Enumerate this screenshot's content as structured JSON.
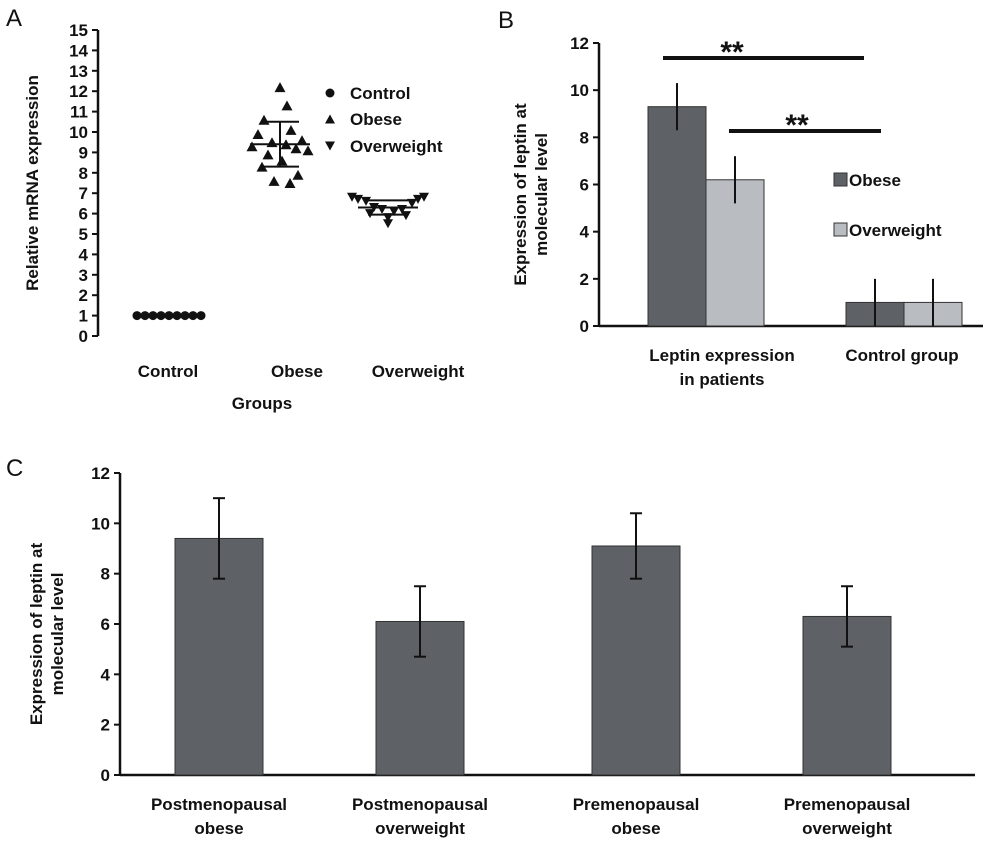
{
  "panels": {
    "A": "A",
    "B": "B",
    "C": "C"
  },
  "colors": {
    "dark_bar": "#5e6166",
    "light_bar": "#b9bcc0",
    "ink": "#111111"
  },
  "chart_data": [
    {
      "panel": "A",
      "type": "scatter",
      "ylabel": "Relative mRNA expression",
      "xlabel": "Groups",
      "ylim": [
        0,
        15
      ],
      "yticks": [
        0,
        1,
        2,
        3,
        4,
        5,
        6,
        7,
        8,
        9,
        10,
        11,
        12,
        13,
        14,
        15
      ],
      "categories": [
        "Control",
        "Obese",
        "Overweight"
      ],
      "legend": {
        "position": "top-right",
        "entries": [
          {
            "label": "Control",
            "marker": "circle"
          },
          {
            "label": "Obese",
            "marker": "triangle-up"
          },
          {
            "label": "Overweight",
            "marker": "triangle-down"
          }
        ]
      },
      "series": [
        {
          "name": "Control",
          "category": "Control",
          "marker": "circle",
          "values": [
            1,
            1,
            1,
            1,
            1,
            1,
            1,
            1,
            1
          ],
          "mean": null,
          "sd": null
        },
        {
          "name": "Obese",
          "category": "Obese",
          "marker": "triangle-up",
          "values": [
            12.2,
            11.3,
            10.6,
            10.1,
            9.9,
            9.6,
            9.5,
            9.4,
            9.3,
            9.2,
            9.1,
            8.9,
            8.6,
            8.3,
            7.9,
            7.6,
            7.5
          ],
          "mean": 9.4,
          "sd": 1.1
        },
        {
          "name": "Overweight",
          "category": "Overweight",
          "marker": "triangle-down",
          "values": [
            6.8,
            6.8,
            6.7,
            6.7,
            6.6,
            6.5,
            6.3,
            6.2,
            6.2,
            6.1,
            6.0,
            5.9,
            5.8,
            5.5
          ],
          "mean": 6.3,
          "sd": 0.35
        }
      ]
    },
    {
      "panel": "B",
      "type": "bar",
      "ylabel": "Expression of leptin at molecular level",
      "ylim": [
        0,
        12
      ],
      "yticks": [
        0,
        2,
        4,
        6,
        8,
        10,
        12
      ],
      "categories": [
        "Leptin expression in patients",
        "Control group"
      ],
      "legend": {
        "position": "right",
        "entries": [
          "Obese",
          "Overweight"
        ]
      },
      "series": [
        {
          "name": "Obese",
          "values": [
            9.3,
            1.0
          ],
          "errors": [
            1.0,
            1.0
          ]
        },
        {
          "name": "Overweight",
          "values": [
            6.2,
            1.0
          ],
          "errors": [
            1.0,
            1.0
          ]
        }
      ],
      "significance": [
        {
          "label": "**",
          "from": "Obese",
          "to": "Control group"
        },
        {
          "label": "**",
          "from": "Overweight",
          "to": "Control group"
        }
      ]
    },
    {
      "panel": "C",
      "type": "bar",
      "ylabel": "Expression of leptin at molecular level",
      "ylim": [
        0,
        12
      ],
      "yticks": [
        0,
        2,
        4,
        6,
        8,
        10,
        12
      ],
      "categories": [
        "Postmenopausal obese",
        "Postmenopausal overweight",
        "Premenopausal obese",
        "Premenopausal overweight"
      ],
      "series": [
        {
          "values": [
            9.4,
            6.1,
            9.1,
            6.3
          ],
          "errors": [
            1.6,
            1.4,
            1.3,
            1.2
          ]
        }
      ]
    }
  ]
}
